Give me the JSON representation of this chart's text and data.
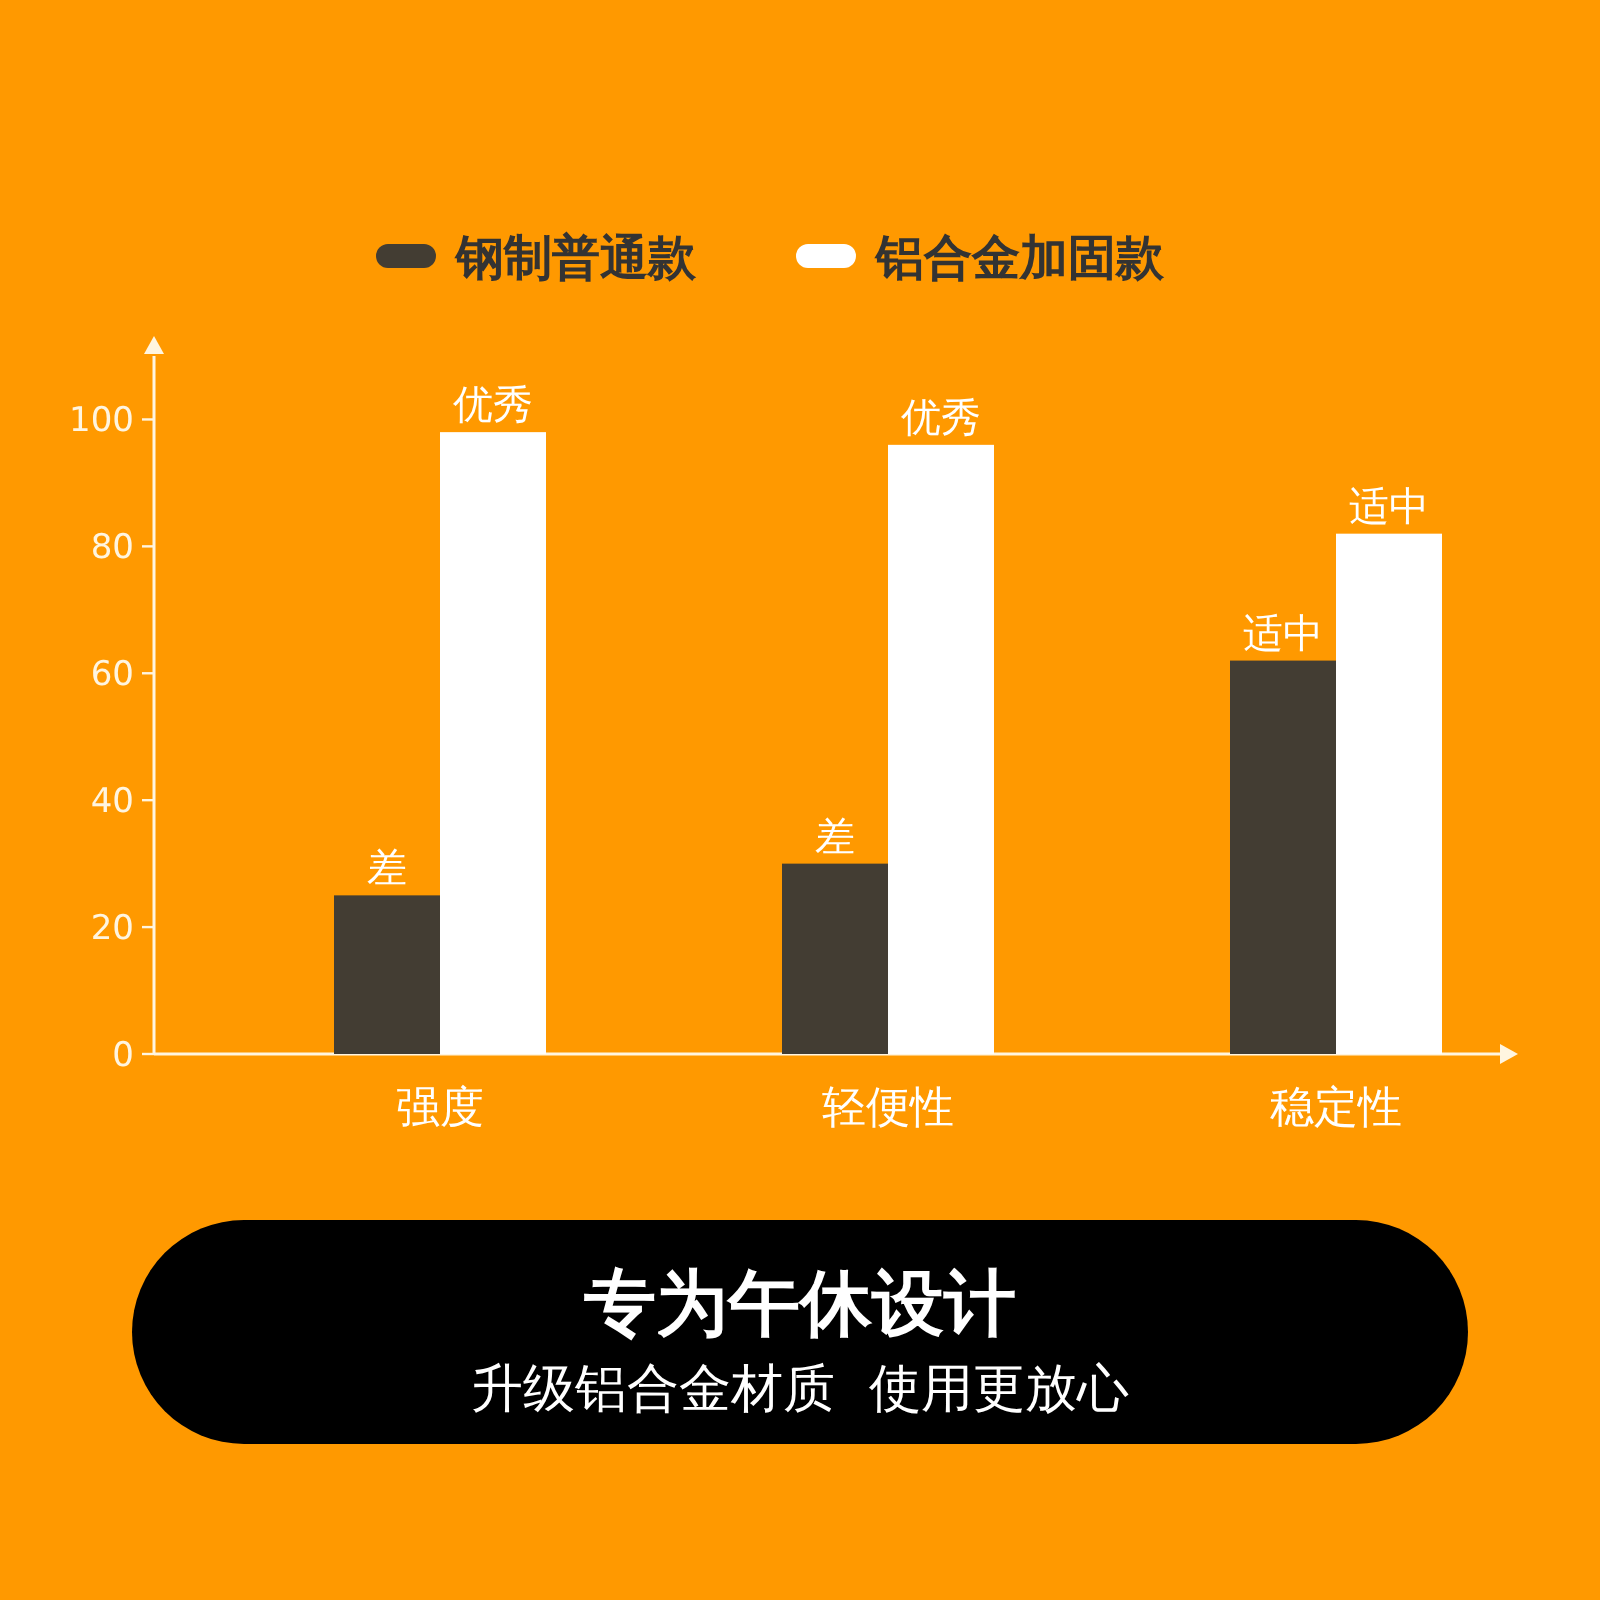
{
  "chart_data": {
    "type": "bar",
    "categories": [
      "强度",
      "轻便性",
      "稳定性"
    ],
    "series": [
      {
        "name": "钢制普通款",
        "color": "#433d33",
        "values": [
          25,
          30,
          62
        ],
        "value_labels": [
          "差",
          "差",
          "适中"
        ]
      },
      {
        "name": "铝合金加固款",
        "color": "#ffffff",
        "values": [
          98,
          96,
          82
        ],
        "value_labels": [
          "优秀",
          "优秀",
          "适中"
        ]
      }
    ],
    "ylim": [
      0,
      110
    ],
    "yticks": [
      0,
      20,
      40,
      60,
      80,
      100
    ],
    "grid": false,
    "legend": "top",
    "annotations": [
      "专为午休设计",
      "升级铝合金材质  使用更放心"
    ]
  }
}
